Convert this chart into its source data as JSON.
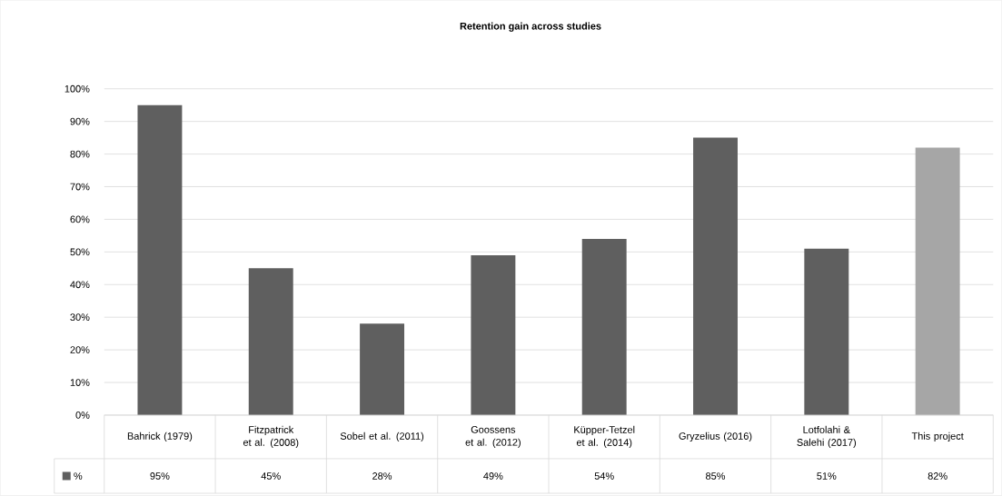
{
  "chart_data": {
    "type": "bar",
    "title": "Retention gain across studies",
    "categories": [
      "Bahrick (1979)",
      "Fitzpatrick et al. (2008)",
      "Sobel et al. (2011)",
      "Goossens et al. (2012)",
      "Küpper-Tetzel et al. (2014)",
      "Gryzelius (2016)",
      "Lotfolahi & Salehi (2017)",
      "This project"
    ],
    "series": [
      {
        "name": "%",
        "color": "#5f5f5f",
        "colors": [
          "#5f5f5f",
          "#5f5f5f",
          "#5f5f5f",
          "#5f5f5f",
          "#5f5f5f",
          "#5f5f5f",
          "#5f5f5f",
          "#a6a6a6"
        ],
        "values": [
          95,
          45,
          28,
          49,
          54,
          85,
          51,
          82
        ],
        "value_labels": [
          "95%",
          "45%",
          "28%",
          "49%",
          "54%",
          "85%",
          "51%",
          "82%"
        ]
      }
    ],
    "ylim": [
      0,
      100
    ],
    "yticks": [
      {
        "value": 0,
        "label": "0%"
      },
      {
        "value": 10,
        "label": "10%"
      },
      {
        "value": 20,
        "label": "20%"
      },
      {
        "value": 30,
        "label": "30%"
      },
      {
        "value": 40,
        "label": "40%"
      },
      {
        "value": 50,
        "label": "50%"
      },
      {
        "value": 60,
        "label": "60%"
      },
      {
        "value": 70,
        "label": "70%"
      },
      {
        "value": 80,
        "label": "80%"
      },
      {
        "value": 90,
        "label": "90%"
      },
      {
        "value": 100,
        "label": "100%"
      }
    ],
    "grid": "y",
    "legend": "bottom"
  }
}
